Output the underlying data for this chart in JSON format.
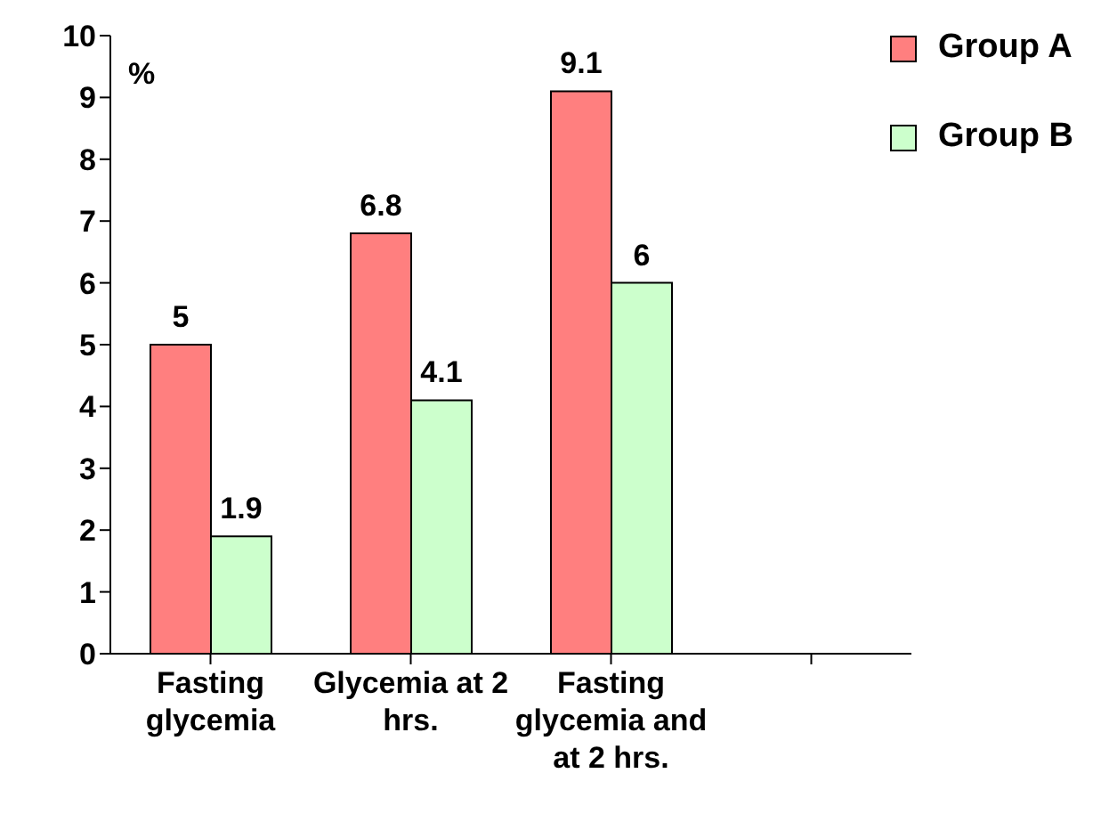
{
  "chart_data": {
    "type": "bar",
    "ylabel": "%",
    "categories": [
      "Fasting glycemia",
      "Glycemia at 2 hrs.",
      "Fasting glycemia and at 2 hrs.",
      null
    ],
    "series": [
      {
        "name": "Group A",
        "color": "#ff7f7f",
        "values": [
          5,
          6.8,
          9.1,
          null
        ]
      },
      {
        "name": "Group B",
        "color": "#ccffcc",
        "values": [
          1.9,
          4.1,
          6,
          null
        ]
      }
    ],
    "ylim": [
      0,
      10
    ],
    "yticks": [
      0,
      1,
      2,
      3,
      4,
      5,
      6,
      7,
      8,
      9,
      10
    ],
    "grid": false,
    "legend": "top right",
    "data_labels": true
  }
}
